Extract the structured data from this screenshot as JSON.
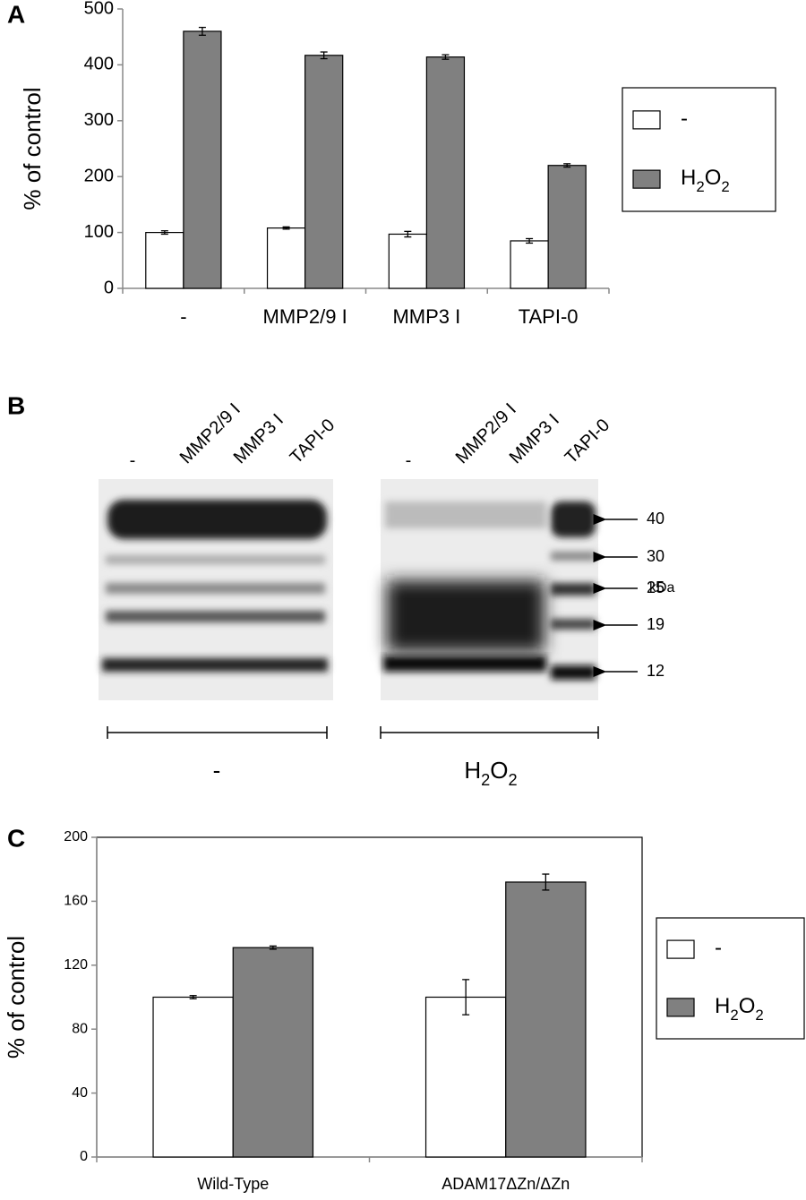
{
  "panel_labels": [
    "A",
    "B",
    "C"
  ],
  "chart_data": [
    {
      "type": "bar",
      "ylabel": "% of control",
      "categories": [
        "-",
        "MMP2/9 I",
        "MMP3 I",
        "TAPI-0"
      ],
      "series": [
        {
          "name": "-",
          "color": "#ffffff",
          "values": [
            100,
            108,
            97,
            85
          ],
          "errors": [
            3,
            2,
            5,
            4
          ]
        },
        {
          "name": "H2O2",
          "color": "#808080",
          "values": [
            460,
            417,
            414,
            220
          ],
          "errors": [
            7,
            6,
            4,
            3
          ]
        }
      ],
      "ylim": [
        0,
        500
      ],
      "yticks": [
        0,
        100,
        200,
        300,
        400,
        500
      ],
      "frame": false,
      "legend": "right"
    },
    {
      "type": "bar",
      "ylabel": "% of control",
      "categories": [
        "Wild-Type",
        "ADAM17ΔZn/ΔZn"
      ],
      "series": [
        {
          "name": "-",
          "color": "#ffffff",
          "values": [
            100,
            100
          ],
          "errors": [
            1,
            11
          ]
        },
        {
          "name": "H2O2",
          "color": "#808080",
          "values": [
            131,
            172
          ],
          "errors": [
            1,
            5
          ]
        }
      ],
      "ylim": [
        0,
        200
      ],
      "yticks": [
        0,
        40,
        80,
        120,
        160,
        200
      ],
      "frame": true,
      "legend": "right"
    }
  ],
  "blot": {
    "lanes": [
      "-",
      "MMP2/9 I",
      "MMP3 I",
      "TAPI-0",
      "-",
      "MMP2/9 I",
      "MMP3 I",
      "TAPI-0"
    ],
    "markers": [
      "40",
      "30",
      "25",
      "19",
      "12"
    ],
    "unit": "kDa",
    "groups": [
      "-",
      "H2O2"
    ]
  }
}
